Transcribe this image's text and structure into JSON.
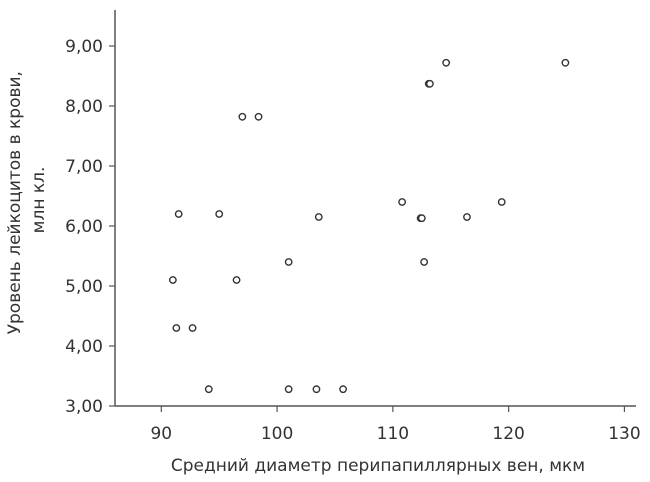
{
  "chart_data": {
    "type": "scatter",
    "title": "",
    "xlabel": "Средний диаметр перипапиллярных вен, мкм",
    "ylabel_lines": [
      "Уровень лейкоцитов в крови,",
      "млн кл."
    ],
    "xlim": [
      86,
      131
    ],
    "ylim": [
      3.0,
      9.6
    ],
    "x_ticks": [
      90,
      100,
      110,
      120,
      130
    ],
    "x_tick_labels": [
      "90",
      "100",
      "110",
      "120",
      "130"
    ],
    "y_ticks": [
      3,
      4,
      5,
      6,
      7,
      8,
      9
    ],
    "y_tick_labels": [
      "3,00",
      "4,00",
      "5,00",
      "6,00",
      "7,00",
      "8,00",
      "9,00"
    ],
    "grid": false,
    "points": [
      {
        "x": 91.0,
        "y": 5.1
      },
      {
        "x": 91.3,
        "y": 4.3
      },
      {
        "x": 91.5,
        "y": 6.2
      },
      {
        "x": 92.7,
        "y": 4.3
      },
      {
        "x": 94.1,
        "y": 3.28
      },
      {
        "x": 95.0,
        "y": 6.2
      },
      {
        "x": 96.5,
        "y": 5.1
      },
      {
        "x": 97.0,
        "y": 7.82
      },
      {
        "x": 98.4,
        "y": 7.82
      },
      {
        "x": 101.0,
        "y": 5.4
      },
      {
        "x": 101.0,
        "y": 3.28
      },
      {
        "x": 103.4,
        "y": 3.28
      },
      {
        "x": 103.6,
        "y": 6.15
      },
      {
        "x": 105.7,
        "y": 3.28
      },
      {
        "x": 110.8,
        "y": 6.4
      },
      {
        "x": 112.4,
        "y": 6.13
      },
      {
        "x": 112.5,
        "y": 6.13
      },
      {
        "x": 112.7,
        "y": 5.4
      },
      {
        "x": 113.1,
        "y": 8.37
      },
      {
        "x": 113.2,
        "y": 8.37
      },
      {
        "x": 114.6,
        "y": 8.72
      },
      {
        "x": 116.4,
        "y": 6.15
      },
      {
        "x": 119.4,
        "y": 6.4
      },
      {
        "x": 124.9,
        "y": 8.72
      }
    ]
  }
}
